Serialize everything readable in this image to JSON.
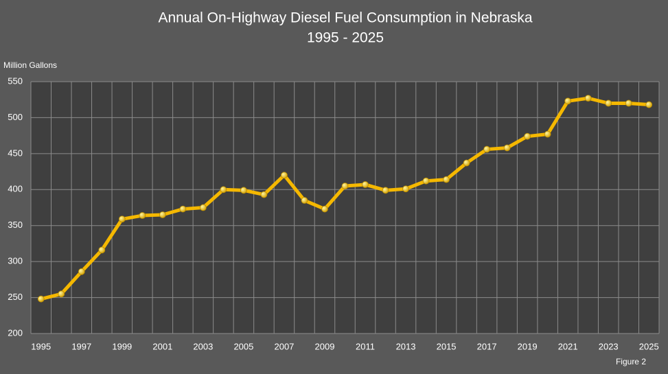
{
  "chart_data": {
    "type": "line",
    "title": "Annual On-Highway Diesel Fuel Consumption in Nebraska",
    "subtitle": "1995 - 2025",
    "y_label": "Million Gallons",
    "note": "Figure 2",
    "categories": [
      "1995",
      null,
      "1997",
      null,
      "1999",
      null,
      "2001",
      null,
      "2003",
      null,
      "2005",
      null,
      "2007",
      null,
      "2009",
      null,
      "2011",
      null,
      "2013",
      null,
      "2015",
      null,
      "2017",
      null,
      "2019",
      null,
      "2021",
      null,
      "2023",
      null,
      "2025"
    ],
    "series": [
      {
        "name": "Diesel Fuel Consumption",
        "color": "#f5b800",
        "values": [
          248,
          255,
          286,
          316,
          359,
          364,
          365,
          373,
          375,
          400,
          399,
          393,
          420,
          385,
          373,
          405,
          407,
          399,
          401,
          412,
          414,
          437,
          456,
          458,
          474,
          477,
          523,
          527,
          520,
          520,
          518
        ]
      }
    ],
    "ylim": [
      200,
      550
    ],
    "yticks": [
      200,
      250,
      300,
      350,
      400,
      450,
      500,
      550
    ],
    "grid": true
  }
}
